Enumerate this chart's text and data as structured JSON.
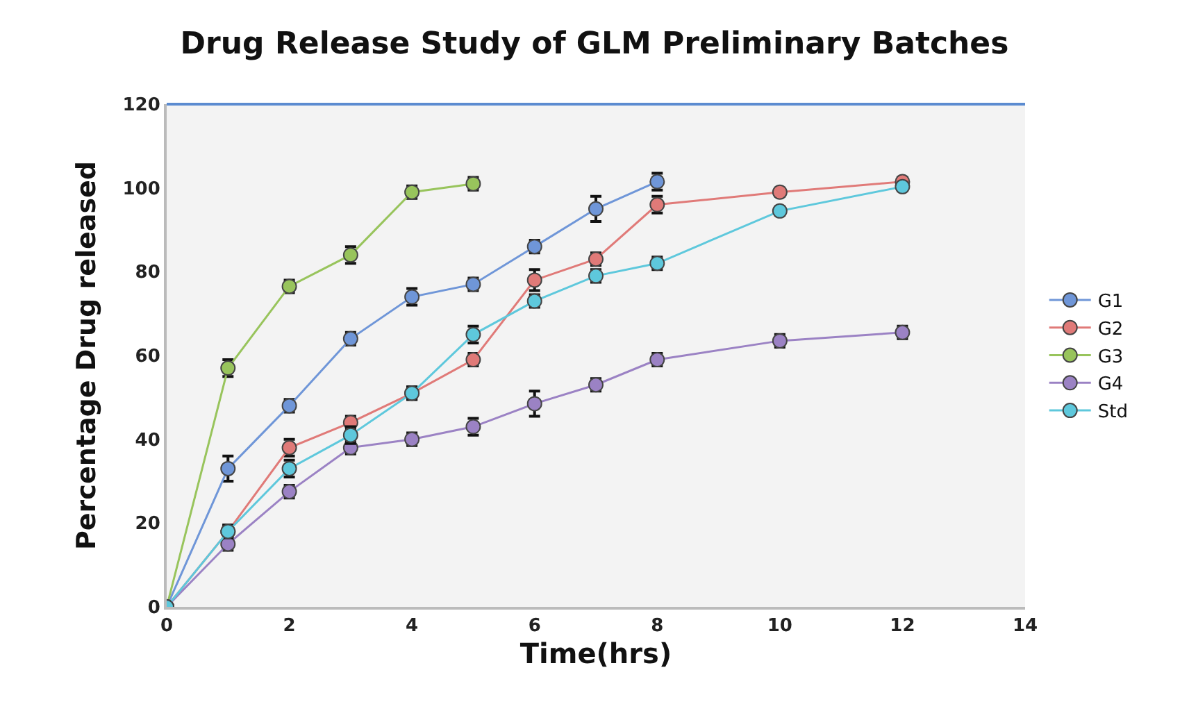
{
  "chart_data": {
    "type": "line",
    "title": "Drug Release Study of GLM Preliminary Batches",
    "xlabel": "Time(hrs)",
    "ylabel": "Percentage Drug released",
    "xlim": [
      0,
      14
    ],
    "xticks": [
      0,
      2,
      4,
      6,
      8,
      10,
      12,
      14
    ],
    "ylim": [
      0,
      120
    ],
    "yticks": [
      0,
      20,
      40,
      60,
      80,
      100,
      120
    ],
    "grid": false,
    "legend": "right",
    "marker": "circle",
    "line_style": "solid",
    "series": [
      {
        "name": "G1",
        "color": "#6f96d8",
        "x": [
          0,
          1,
          2,
          3,
          4,
          5,
          6,
          7,
          8
        ],
        "values": [
          0,
          33,
          48,
          64,
          74,
          77,
          86,
          95,
          101.5
        ],
        "errors": [
          null,
          3,
          1.5,
          1.5,
          2,
          1.5,
          1.5,
          3,
          2
        ]
      },
      {
        "name": "G2",
        "color": "#e07a78",
        "x": [
          0,
          1,
          2,
          3,
          4,
          5,
          6,
          7,
          8,
          10,
          12
        ],
        "values": [
          0,
          18,
          38,
          44,
          51,
          59,
          78,
          83,
          96,
          99,
          101.5
        ],
        "errors": [
          null,
          1.5,
          2,
          1.5,
          1.5,
          1.5,
          2.5,
          1.5,
          2,
          1,
          1
        ]
      },
      {
        "name": "G3",
        "color": "#98c45c",
        "x": [
          0,
          1,
          2,
          3,
          4,
          5
        ],
        "values": [
          0,
          57,
          76.5,
          84,
          99,
          101
        ],
        "errors": [
          null,
          2,
          1.5,
          2,
          1.5,
          1.5
        ]
      },
      {
        "name": "G4",
        "color": "#9b82c4",
        "x": [
          0,
          1,
          2,
          3,
          4,
          5,
          6,
          7,
          8,
          10,
          12
        ],
        "values": [
          0,
          15,
          27.5,
          38,
          40,
          43,
          48.5,
          53,
          59,
          63.5,
          65.5
        ],
        "errors": [
          null,
          1.5,
          1.5,
          1.5,
          1.5,
          2,
          3,
          1.5,
          1.5,
          1.5,
          1.5
        ]
      },
      {
        "name": "Std",
        "color": "#5ec8dc",
        "x": [
          0,
          1,
          2,
          3,
          4,
          5,
          6,
          7,
          8,
          10,
          12
        ],
        "values": [
          0,
          18,
          33,
          41,
          51,
          65,
          73,
          79,
          82,
          94.5,
          100.3
        ],
        "errors": [
          null,
          1.5,
          2,
          2,
          1.5,
          2,
          1.5,
          1.5,
          1.5,
          1,
          1
        ]
      }
    ]
  }
}
